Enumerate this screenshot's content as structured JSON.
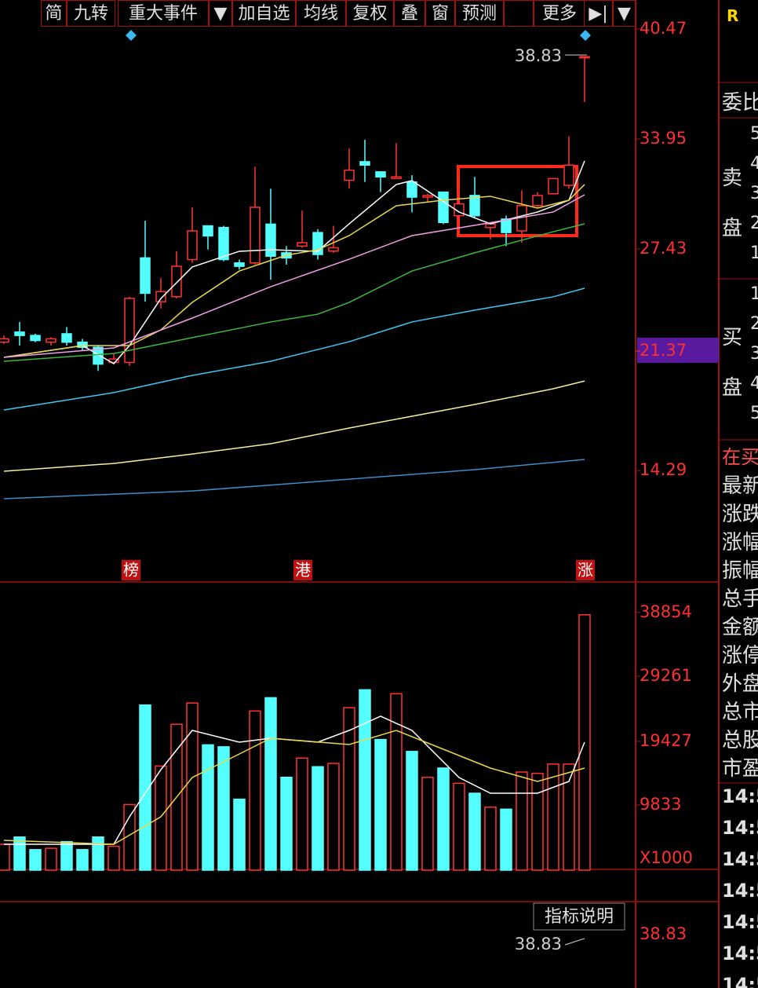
{
  "toolbar": [
    "简",
    "九转",
    "重大事件",
    "▼",
    "加自选",
    "均线",
    "复权",
    "叠",
    "窗",
    "预测",
    "更多",
    "▶|",
    "▼"
  ],
  "event_markers": [
    "榜",
    "港",
    "涨"
  ],
  "chart_data": [
    {
      "type": "candlestick",
      "up_color": "#ff3232",
      "down_color": "#54ffff",
      "ylim": [
        7.73,
        42.19
      ],
      "yticks": [
        40.47,
        33.95,
        27.43,
        14.29
      ],
      "current_marker": {
        "value": 21.37,
        "label": "21.37"
      },
      "high_label": "38.83",
      "open": [
        21.9,
        22.5,
        22.3,
        21.9,
        22.4,
        21.9,
        21.6,
        20.7,
        20.7,
        26.9,
        24.3,
        24.6,
        26.8,
        28.8,
        28.7,
        26.6,
        26.6,
        28.9,
        27.2,
        27.6,
        28.4,
        27.3,
        31.5,
        32.6,
        32.0,
        31.6,
        31.4,
        30.5,
        30.8,
        29.4,
        30.6,
        28.7,
        29.2,
        28.5,
        30.0,
        30.7,
        31.2,
        38.83
      ],
      "high": [
        22.3,
        23.1,
        22.4,
        22.2,
        22.8,
        22.1,
        21.7,
        21.2,
        24.6,
        29.1,
        25.7,
        27.3,
        29.9,
        28.8,
        28.8,
        26.8,
        32.3,
        31.0,
        27.6,
        29.7,
        28.6,
        28.8,
        33.4,
        33.9,
        32.0,
        33.7,
        31.8,
        30.7,
        30.8,
        30.7,
        31.7,
        29.0,
        29.4,
        30.9,
        30.8,
        31.6,
        34.1,
        38.83
      ],
      "low": [
        21.8,
        21.7,
        21.9,
        21.7,
        21.7,
        21.4,
        20.2,
        20.6,
        20.5,
        24.3,
        23.9,
        24.5,
        26.6,
        27.4,
        26.7,
        26.2,
        26.5,
        25.6,
        26.5,
        27.5,
        26.8,
        27.2,
        31.0,
        31.4,
        30.8,
        31.6,
        29.6,
        30.2,
        28.9,
        28.9,
        29.3,
        28.0,
        27.6,
        27.8,
        29.9,
        30.7,
        31.0,
        36.14
      ],
      "close": [
        22.1,
        22.3,
        22.0,
        22.1,
        21.9,
        21.6,
        20.6,
        20.9,
        24.5,
        24.8,
        24.9,
        26.4,
        28.5,
        28.2,
        26.8,
        26.4,
        29.9,
        27.0,
        26.9,
        27.8,
        27.1,
        27.5,
        32.1,
        32.4,
        31.7,
        31.7,
        30.5,
        30.6,
        29.0,
        30.1,
        29.4,
        28.9,
        28.4,
        30.0,
        30.6,
        31.6,
        32.4,
        38.83
      ],
      "ma_series": [
        {
          "color": "#ffffff",
          "x": [
            0,
            5,
            7,
            8,
            10,
            12,
            15,
            17,
            20,
            22,
            25,
            26,
            29,
            31,
            34,
            36,
            37
          ],
          "values": [
            21.0,
            21.7,
            20.63,
            21.7,
            24.49,
            26.36,
            27.29,
            27.38,
            27.29,
            28.92,
            31.25,
            31.48,
            29.62,
            28.92,
            29.62,
            30.32,
            32.65
          ]
        },
        {
          "color": "#e8d84a",
          "x": [
            0,
            5,
            8,
            10,
            12,
            15,
            18,
            20,
            22,
            25,
            28,
            31,
            34,
            36,
            37
          ],
          "values": [
            21.0,
            21.7,
            21.7,
            22.63,
            24.26,
            26.12,
            27.06,
            27.38,
            28.22,
            29.99,
            30.32,
            30.55,
            29.85,
            30.32,
            31.25
          ]
        },
        {
          "color": "#f0a0e8",
          "x": [
            0,
            7,
            12,
            17,
            22,
            26,
            30,
            35,
            37
          ],
          "values": [
            21.0,
            21.56,
            23.33,
            25.19,
            26.82,
            28.22,
            28.83,
            29.62,
            30.64
          ]
        },
        {
          "color": "#3cb83c",
          "x": [
            0,
            7,
            12,
            17,
            20,
            22,
            26,
            30,
            35,
            37
          ],
          "values": [
            20.77,
            21.23,
            22.17,
            23.1,
            23.56,
            24.26,
            26.12,
            27.2,
            28.45,
            28.92
          ]
        },
        {
          "color": "#3cc8f0",
          "x": [
            0,
            7,
            12,
            17,
            22,
            26,
            30,
            35,
            37
          ],
          "values": [
            17.88,
            18.91,
            19.93,
            20.77,
            21.93,
            23.1,
            23.8,
            24.59,
            25.1
          ]
        },
        {
          "color": "#f0f0a0",
          "x": [
            0,
            7,
            12,
            17,
            22,
            26,
            30,
            35,
            37
          ],
          "values": [
            14.25,
            14.71,
            15.27,
            15.88,
            16.81,
            17.51,
            18.21,
            19.14,
            19.6
          ]
        },
        {
          "color": "#3c8cc8",
          "x": [
            0,
            12,
            22,
            30,
            37
          ],
          "values": [
            12.62,
            13.08,
            13.78,
            14.34,
            14.95
          ]
        }
      ]
    },
    {
      "type": "bar",
      "unit_label": "X1000",
      "ylim": [
        0,
        43570
      ],
      "yticks": [
        9833,
        19427,
        29261,
        38854
      ],
      "values": [
        3900,
        5000,
        3100,
        3300,
        4300,
        3100,
        5000,
        3600,
        9900,
        24900,
        15700,
        22000,
        25200,
        18900,
        18600,
        10700,
        24000,
        26000,
        14000,
        16900,
        15600,
        16100,
        24500,
        27200,
        19700,
        26600,
        17900,
        14000,
        15400,
        13100,
        11600,
        9500,
        9200,
        14800,
        14600,
        16000,
        16000,
        38500
      ],
      "ma_series": [
        {
          "color": "#ffffff",
          "x": [
            0,
            7,
            8,
            10,
            12,
            15,
            17,
            20,
            22,
            24,
            26,
            29,
            31,
            34,
            36,
            37
          ],
          "values": [
            3907,
            3907,
            8051,
            15155,
            21075,
            19299,
            19891,
            19299,
            21075,
            23206,
            21075,
            13971,
            11603,
            11603,
            13379,
            19299
          ]
        },
        {
          "color": "#e8d84a",
          "x": [
            0,
            7,
            10,
            12,
            15,
            17,
            22,
            25,
            29,
            31,
            34,
            37
          ],
          "values": [
            4499,
            3907,
            8051,
            13971,
            17523,
            19891,
            18944,
            21075,
            17286,
            15392,
            13379,
            15392
          ]
        }
      ]
    }
  ],
  "indicator_panel": {
    "button": "指标说明",
    "axis_label": "38.83",
    "high_label": "38.83"
  },
  "side_panel": {
    "flag": "R",
    "title": "委比",
    "sell": "卖\n盘",
    "buy": "买\n盘",
    "ask_levels": [
      "5",
      "4",
      "3",
      "2",
      "1"
    ],
    "bid_levels": [
      "1",
      "2",
      "3",
      "4",
      "5"
    ],
    "queue": "在买",
    "fields": [
      "最新",
      "涨跌",
      "涨幅",
      "振幅",
      "总手",
      "金额",
      "涨停",
      "外盘",
      "总市",
      "总股",
      "市盈"
    ],
    "times": [
      "14:5",
      "14:5",
      "14:5",
      "14:5",
      "14:5",
      "14:5",
      "14:5"
    ]
  }
}
